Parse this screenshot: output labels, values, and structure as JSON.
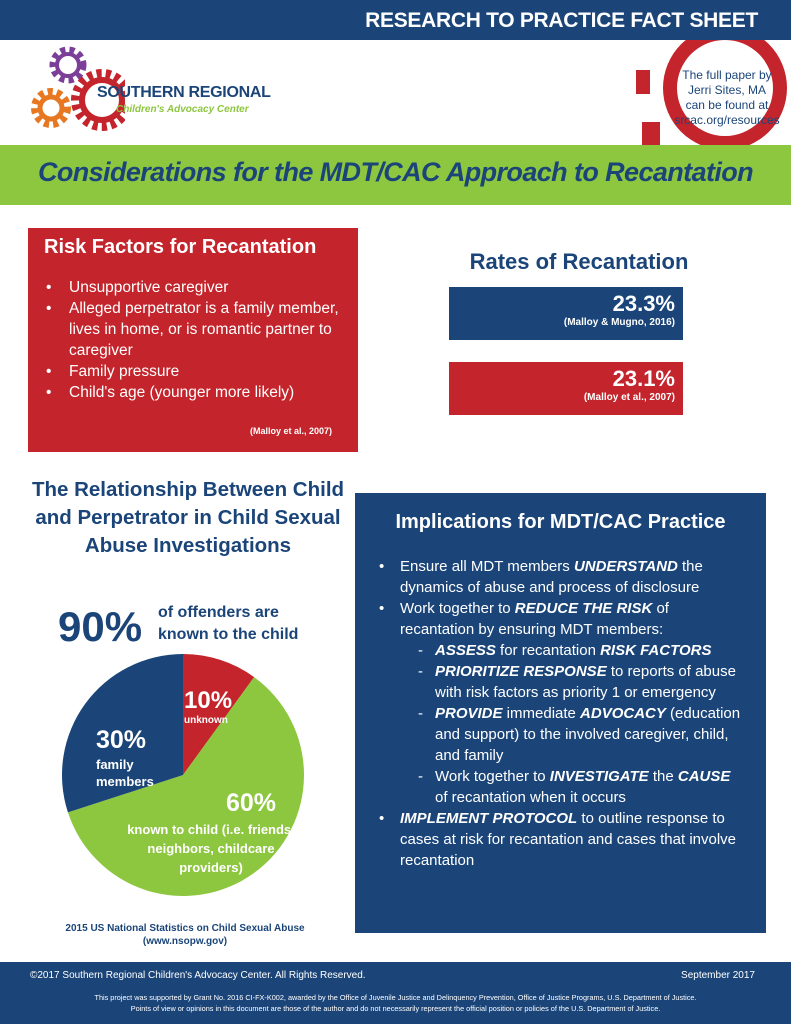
{
  "header": {
    "title": "RESEARCH TO PRACTICE FACT SHEET"
  },
  "logo": {
    "line1": "SOUTHERN REGIONAL",
    "line2": "Children's Advocacy Center"
  },
  "badge": {
    "text": [
      "The full paper by",
      "Jerri Sites, MA",
      "can be found at",
      "srcac.org/resources"
    ]
  },
  "main_title": "Considerations for the MDT/CAC Approach to Recantation",
  "risk": {
    "title": "Risk Factors for Recantation",
    "items": [
      "Unsupportive caregiver",
      "Alleged perpetrator is a family member, lives in home, or is romantic partner to caregiver",
      "Family pressure",
      "Child's age (younger more likely)"
    ],
    "citation": "(Malloy et al., 2007)"
  },
  "rates": {
    "title": "Rates of Recantation",
    "items": [
      {
        "value": "23.3%",
        "citation": "(Malloy & Mugno, 2016)",
        "color": "#1b4579"
      },
      {
        "value": "23.1%",
        "citation": "(Malloy et al., 2007)",
        "color": "#c4242b"
      }
    ]
  },
  "relationship": {
    "title": "The Relationship Between Child and Perpetrator in Child Sexual Abuse Investigations",
    "stat": "90%",
    "stat_label_1": "of offenders are",
    "stat_label_2": "known to the child",
    "source_1": "2015 US National Statistics on Child Sexual Abuse",
    "source_2": "(www.nsopw.gov)"
  },
  "chart_data": {
    "type": "pie",
    "slices": [
      {
        "label": "unknown",
        "value": 10,
        "display": "10%",
        "color": "#c4242b"
      },
      {
        "label": "known to child (i.e. friends, neighbors, childcare providers)",
        "value": 60,
        "display": "60%",
        "color": "#8dc63f"
      },
      {
        "label": "family members",
        "value": 30,
        "display": "30%",
        "color": "#1b4579"
      }
    ]
  },
  "implications": {
    "title": "Implications for MDT/CAC Practice"
  },
  "footer": {
    "copyright": "©2017 Southern Regional Children's Advocacy Center. All Rights Reserved.",
    "date": "September 2017",
    "grant_1": "This project was supported by Grant No. 2016 CI-FX-K002, awarded by the Office of Juvenile Justice and Delinquency Prevention, Office of Justice Programs, U.S. Department of Justice.",
    "grant_2": "Points of view or opinions in this document are those of the author and do not necessarily represent the official position or policies of the U.S. Department of Justice."
  },
  "colors": {
    "navy": "#1b4579",
    "red": "#c4242b",
    "green": "#8dc63f"
  }
}
